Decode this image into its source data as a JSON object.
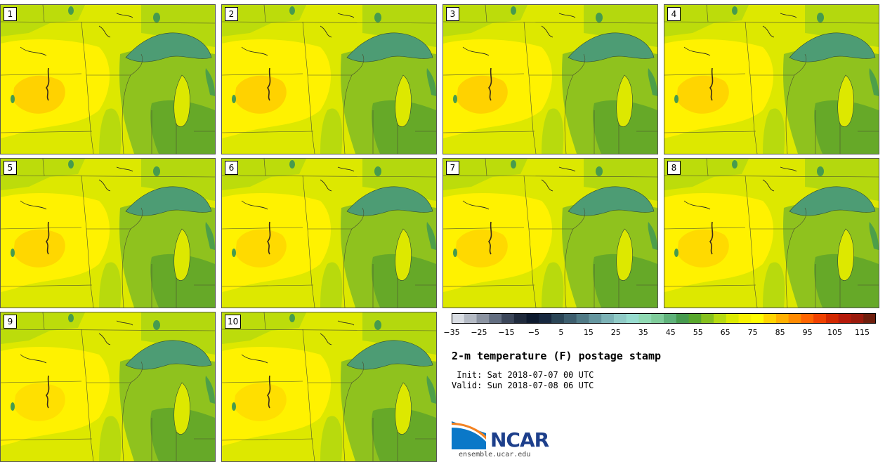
{
  "title": "2-m temperature (F) postage stamp",
  "init_line": " Init: Sat 2018-07-07 00 UTC",
  "valid_line": "Valid: Sun 2018-07-08 06 UTC",
  "logo": {
    "name": "NCAR",
    "url": "ensemble.ucar.edu"
  },
  "members": [
    "1",
    "2",
    "3",
    "4",
    "5",
    "6",
    "7",
    "8",
    "9",
    "10"
  ],
  "colorbar": {
    "min": -35,
    "max": 120,
    "step": 5,
    "tick_labels": [
      "−35",
      "−25",
      "−15",
      "−5",
      "5",
      "15",
      "25",
      "35",
      "45",
      "55",
      "65",
      "75",
      "85",
      "95",
      "105",
      "115"
    ],
    "tick_values": [
      -35,
      -25,
      -15,
      -5,
      5,
      15,
      25,
      35,
      45,
      55,
      65,
      75,
      85,
      95,
      105,
      115
    ],
    "colors": [
      "#d9dde3",
      "#b4bac4",
      "#8b93a1",
      "#626d80",
      "#3b4659",
      "#1f2a3c",
      "#0d1a2e",
      "#17283f",
      "#2a4556",
      "#3d5e6e",
      "#507a86",
      "#65969f",
      "#7cb2b6",
      "#8fcac6",
      "#97dccf",
      "#8fd9b2",
      "#7fcc9a",
      "#5fb27a",
      "#469a4e",
      "#58a72c",
      "#86c01e",
      "#b6da11",
      "#dcea00",
      "#f8f100",
      "#fffc00",
      "#ffd400",
      "#ffb000",
      "#ff8a00",
      "#ff6400",
      "#f04100",
      "#d22800",
      "#b51a0a",
      "#9a1a0c",
      "#6e1e0c"
    ]
  },
  "palette": {
    "very_warm": "#ffd200",
    "warm": "#fff200",
    "mild": "#dde800",
    "cool": "#b4d80e",
    "cooler": "#8fc21e",
    "cold": "#5fa52a",
    "lake": "#469b4e",
    "lake_deep": "#4d9c74"
  }
}
